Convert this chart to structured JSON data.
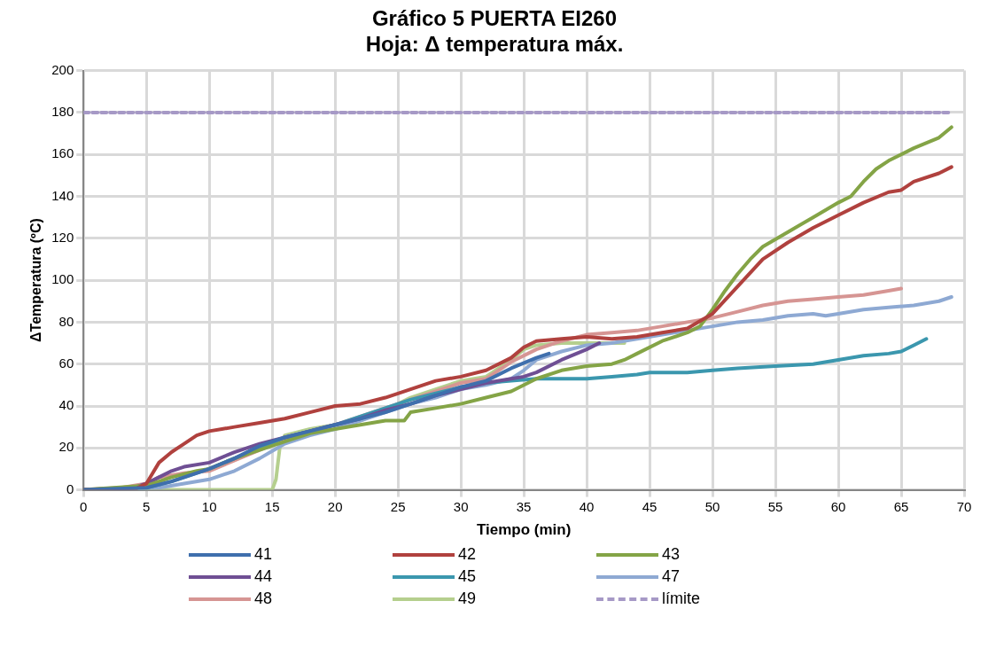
{
  "chart_data": {
    "type": "line",
    "title": "Gráfico 5 PUERTA EI260\nHoja: Δ temperatura máx.",
    "xlabel": "Tiempo (min)",
    "ylabel": "ΔTemperatura (ºC)",
    "xlim": [
      0,
      70
    ],
    "xticks": [
      0,
      5,
      10,
      15,
      20,
      25,
      30,
      35,
      40,
      45,
      50,
      55,
      60,
      65,
      70
    ],
    "ylim": [
      0,
      200
    ],
    "yticks": [
      0,
      20,
      40,
      60,
      80,
      100,
      120,
      140,
      160,
      180,
      200
    ],
    "grid": true,
    "legend": "bottom",
    "marker": "none",
    "line_style": "solid",
    "series": [
      {
        "name": "41",
        "color": "#3f6fad",
        "x": [
          0,
          5,
          7,
          9,
          10,
          12,
          14,
          16,
          18,
          20,
          22,
          24,
          26,
          28,
          30,
          32,
          34,
          36,
          37
        ],
        "values": [
          0,
          1,
          4,
          8,
          10,
          15,
          21,
          25,
          28,
          31,
          34,
          37,
          41,
          45,
          49,
          52,
          58,
          63,
          65
        ]
      },
      {
        "name": "42",
        "color": "#b0413e",
        "x": [
          0,
          4,
          5,
          5.5,
          6,
          7,
          8,
          9,
          10,
          11,
          12,
          14,
          16,
          18,
          20,
          22,
          24,
          26,
          28,
          30,
          32,
          34,
          35,
          36,
          38,
          40,
          42,
          44,
          46,
          48,
          50,
          52,
          54,
          56,
          58,
          60,
          62,
          64,
          65,
          66,
          68,
          69
        ],
        "values": [
          0,
          0,
          3,
          8,
          13,
          18,
          22,
          26,
          28,
          29,
          30,
          32,
          34,
          37,
          40,
          41,
          44,
          48,
          52,
          54,
          57,
          63,
          68,
          71,
          72,
          73,
          72,
          73,
          75,
          77,
          84,
          97,
          110,
          118,
          125,
          131,
          137,
          142,
          143,
          147,
          151,
          154
        ]
      },
      {
        "name": "43",
        "color": "#84a446",
        "x": [
          0,
          5,
          7,
          9,
          10,
          12,
          14,
          16,
          18,
          20,
          22,
          24,
          25.5,
          26,
          28,
          30,
          32,
          34,
          36,
          38,
          40,
          42,
          43,
          44,
          46,
          48,
          49,
          50,
          51,
          52,
          53,
          54,
          56,
          58,
          60,
          61,
          62,
          63,
          64,
          66,
          68,
          69
        ],
        "values": [
          0,
          2,
          6,
          9,
          10,
          15,
          19,
          23,
          27,
          29,
          31,
          33,
          33,
          37,
          39,
          41,
          44,
          47,
          53,
          57,
          59,
          60,
          62,
          65,
          71,
          75,
          78,
          86,
          95,
          103,
          110,
          116,
          123,
          130,
          137,
          140,
          147,
          153,
          157,
          163,
          168,
          173
        ]
      },
      {
        "name": "44",
        "color": "#6f4f94",
        "x": [
          0,
          4,
          5,
          6,
          7,
          8,
          10,
          12,
          14,
          16,
          18,
          20,
          22,
          24,
          26,
          28,
          30,
          32,
          34,
          35,
          36,
          38,
          40,
          41
        ],
        "values": [
          0,
          1,
          3,
          6,
          9,
          11,
          13,
          18,
          22,
          25,
          28,
          31,
          34,
          38,
          41,
          45,
          48,
          51,
          53,
          54,
          56,
          62,
          67,
          70
        ]
      },
      {
        "name": "45",
        "color": "#3b97ae",
        "x": [
          0,
          5,
          7,
          9,
          10,
          12,
          14,
          16,
          18,
          20,
          22,
          24,
          26,
          28,
          30,
          32,
          34,
          36,
          38,
          40,
          42,
          44,
          45,
          48,
          50,
          52,
          55,
          58,
          60,
          62,
          64,
          65,
          66,
          67
        ],
        "values": [
          0,
          1,
          4,
          8,
          10,
          15,
          20,
          25,
          28,
          31,
          35,
          39,
          43,
          46,
          49,
          51,
          52,
          53,
          53,
          53,
          54,
          55,
          56,
          56,
          57,
          58,
          59,
          60,
          62,
          64,
          65,
          66,
          69,
          72
        ]
      },
      {
        "name": "47",
        "color": "#8ea9d3",
        "x": [
          0,
          6,
          8,
          10,
          12,
          14,
          16,
          18,
          20,
          22,
          24,
          26,
          28,
          30,
          32,
          34,
          35,
          36,
          38,
          40,
          42,
          44,
          46,
          48,
          50,
          52,
          54,
          56,
          58,
          59,
          60,
          62,
          64,
          66,
          68,
          69
        ],
        "values": [
          0,
          1,
          3,
          5,
          9,
          15,
          22,
          26,
          29,
          33,
          37,
          41,
          44,
          48,
          50,
          53,
          57,
          62,
          66,
          69,
          70,
          72,
          74,
          76,
          78,
          80,
          81,
          83,
          84,
          83,
          84,
          86,
          87,
          88,
          90,
          92
        ]
      },
      {
        "name": "48",
        "color": "#d69593",
        "x": [
          0,
          3,
          5,
          6,
          8,
          10,
          12,
          14,
          16,
          18,
          20,
          22,
          24,
          26,
          28,
          30,
          32,
          34,
          36,
          38,
          40,
          42,
          44,
          46,
          48,
          50,
          52,
          54,
          56,
          58,
          60,
          62,
          64,
          65
        ],
        "values": [
          0,
          1,
          3,
          6,
          8,
          9,
          14,
          19,
          24,
          28,
          31,
          35,
          39,
          43,
          47,
          51,
          53,
          61,
          67,
          71,
          74,
          75,
          76,
          78,
          80,
          82,
          85,
          88,
          90,
          91,
          92,
          93,
          95,
          96
        ]
      },
      {
        "name": "49",
        "color": "#b5cf8e",
        "x": [
          0,
          15,
          15.3,
          15.6,
          16,
          18,
          20,
          22,
          24,
          26,
          28,
          30,
          32,
          34,
          35,
          36,
          38,
          40,
          43
        ],
        "values": [
          0,
          0,
          5,
          20,
          26,
          29,
          31,
          33,
          38,
          44,
          48,
          52,
          54,
          62,
          67,
          69,
          70,
          70,
          70
        ]
      },
      {
        "name": "límite",
        "color": "#a699c6",
        "line_style": "dashed",
        "x": [
          0,
          69
        ],
        "values": [
          180,
          180
        ]
      }
    ]
  }
}
